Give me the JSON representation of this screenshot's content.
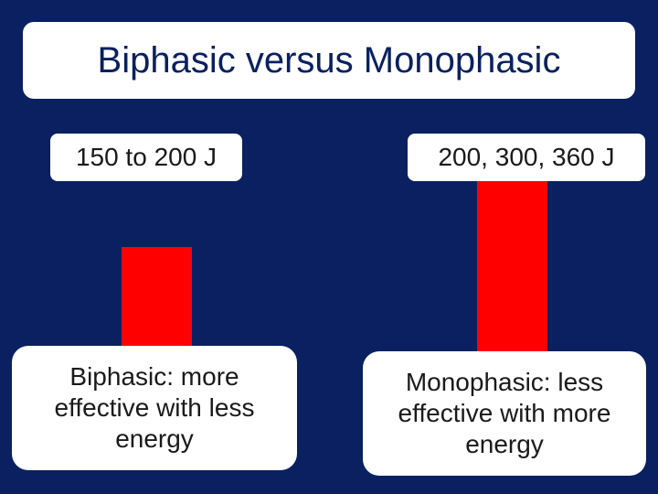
{
  "title": "Biphasic versus Monophasic",
  "left": {
    "energy_label": "150 to 200 J",
    "caption": "Biphasic: more effective with less energy"
  },
  "right": {
    "energy_label": "200, 300, 360 J",
    "caption": "Monophasic: less effective with more energy"
  },
  "colors": {
    "background": "#0a2060",
    "bar": "#ff0000",
    "box": "#ffffff"
  }
}
